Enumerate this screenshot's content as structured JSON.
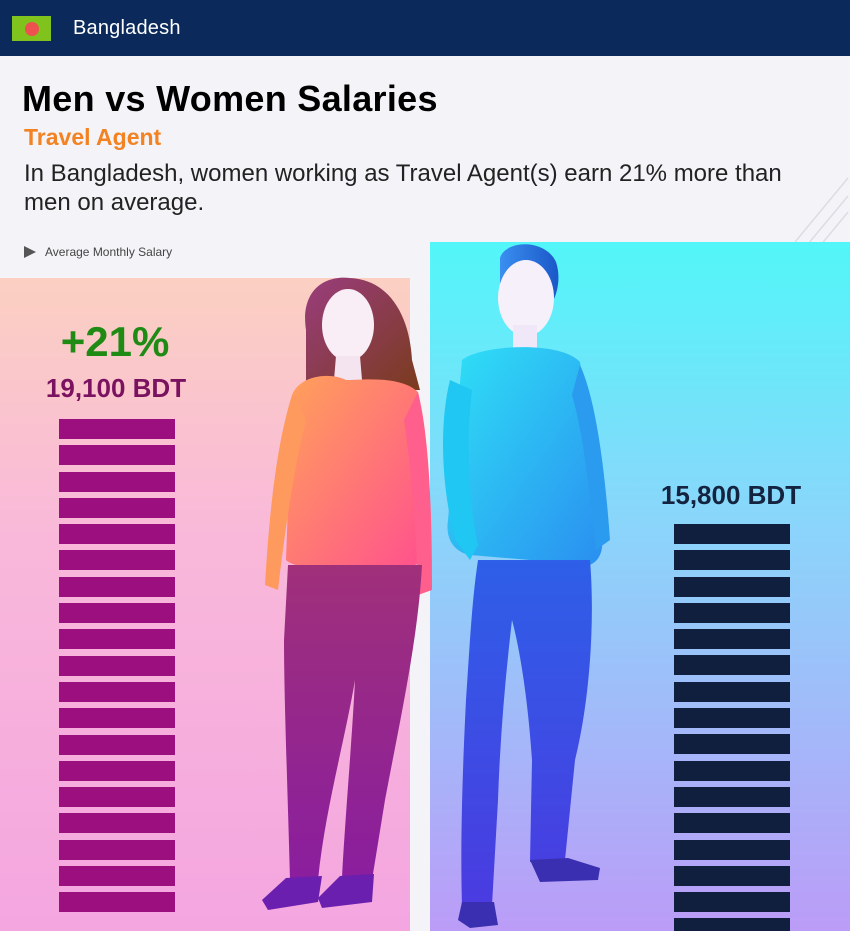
{
  "header": {
    "country": "Bangladesh",
    "flag_icon": "bangladesh-flag-icon",
    "flag_colors": {
      "field": "#7fc31c",
      "disc": "#ef5050"
    }
  },
  "page": {
    "title": "Men vs Women Salaries",
    "job_title": "Travel Agent",
    "description": "In Bangladesh, women working as Travel Agent(s) earn 21% more than men on average.",
    "legend_label": "Average Monthly Salary"
  },
  "chart_data": {
    "type": "bar",
    "categories": [
      "Women",
      "Men"
    ],
    "values": [
      19100,
      15800
    ],
    "value_labels": [
      "19,100 BDT",
      "15,800 BDT"
    ],
    "difference_label": "+21%",
    "unit": "BDT",
    "colors": {
      "women": "#9c0f7f",
      "men": "#101f3d",
      "difference": "#1f8b15"
    }
  }
}
